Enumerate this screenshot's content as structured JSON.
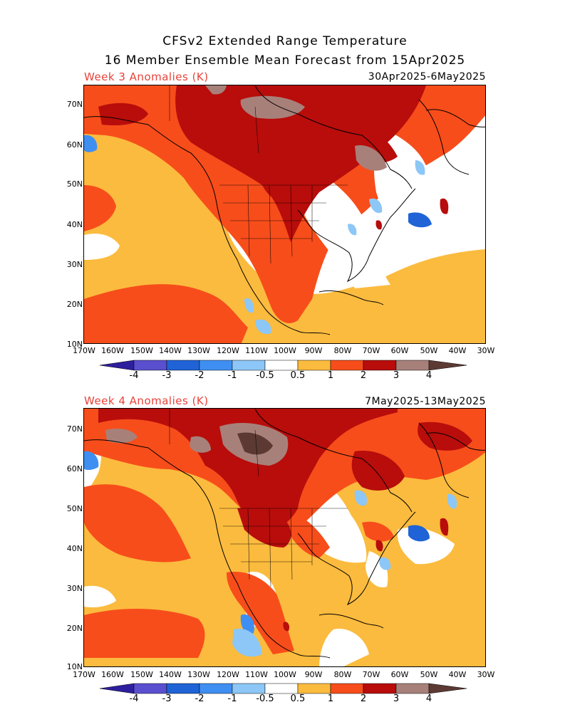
{
  "title_line1": "CFSv2 Extended Range Temperature",
  "title_line2": "16 Member Ensemble Mean Forecast from 15Apr2025",
  "panels": [
    {
      "label": "Week 3 Anomalies (K)",
      "dates": "30Apr2025-6May2025"
    },
    {
      "label": "Week 4 Anomalies (K)",
      "dates": "7May2025-13May2025"
    }
  ],
  "lat_labels": [
    "70N",
    "60N",
    "50N",
    "40N",
    "30N",
    "20N",
    "10N"
  ],
  "lon_labels": [
    "170W",
    "160W",
    "150W",
    "140W",
    "130W",
    "120W",
    "110W",
    "100W",
    "90W",
    "80W",
    "70W",
    "60W",
    "50W",
    "40W",
    "30W"
  ],
  "colorbar": {
    "labels": [
      "-4",
      "-3",
      "-2",
      "-1",
      "-0.5",
      "0.5",
      "1",
      "2",
      "3",
      "4"
    ],
    "colors": [
      "#2e1f9e",
      "#5a4fcf",
      "#1f63d6",
      "#3f8ff2",
      "#8cc7f7",
      "#ffffff",
      "#fbbb3e",
      "#f74d1b",
      "#b80d0b",
      "#a8807a",
      "#5c3a33"
    ]
  },
  "anomaly_colors": {
    "light_blue": "#8cc7f7",
    "blue": "#3f8ff2",
    "dark_blue": "#1f63d6",
    "yellow": "#fbbb3e",
    "orange": "#f74d1b",
    "red": "#b80d0b",
    "brown": "#a8807a",
    "dark_brown": "#5c3a33"
  }
}
